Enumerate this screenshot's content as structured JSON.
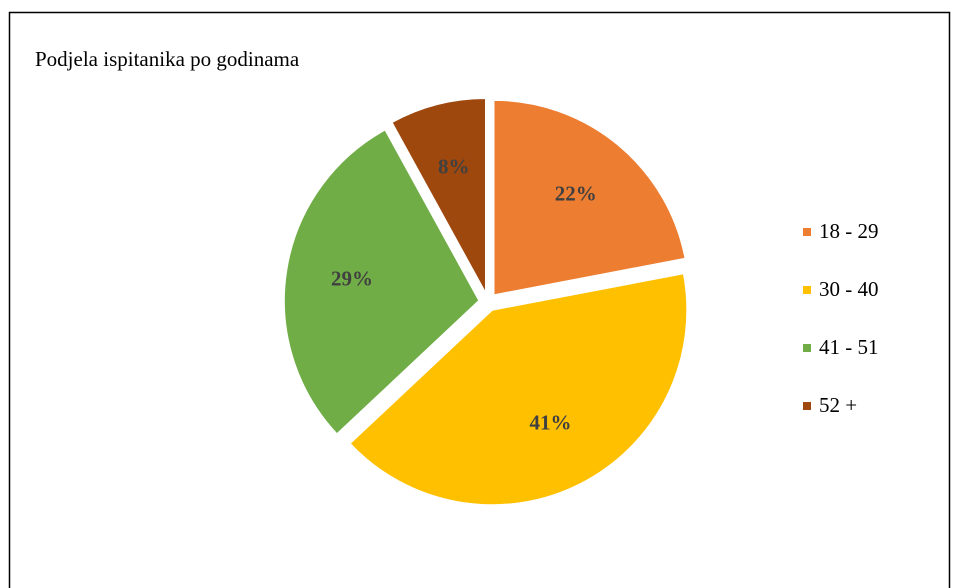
{
  "chart_data": {
    "type": "pie",
    "title": "Podjela ispitanika po godinama",
    "categories": [
      "18 - 29",
      "30 - 40",
      "41 - 51",
      "52 +"
    ],
    "values": [
      22,
      41,
      29,
      8
    ],
    "value_labels": [
      "22%",
      "41%",
      "29%",
      "8%"
    ],
    "colors": [
      "#ED7D31",
      "#FFC000",
      "#70AD47",
      "#9E480E"
    ],
    "legend": "right"
  }
}
